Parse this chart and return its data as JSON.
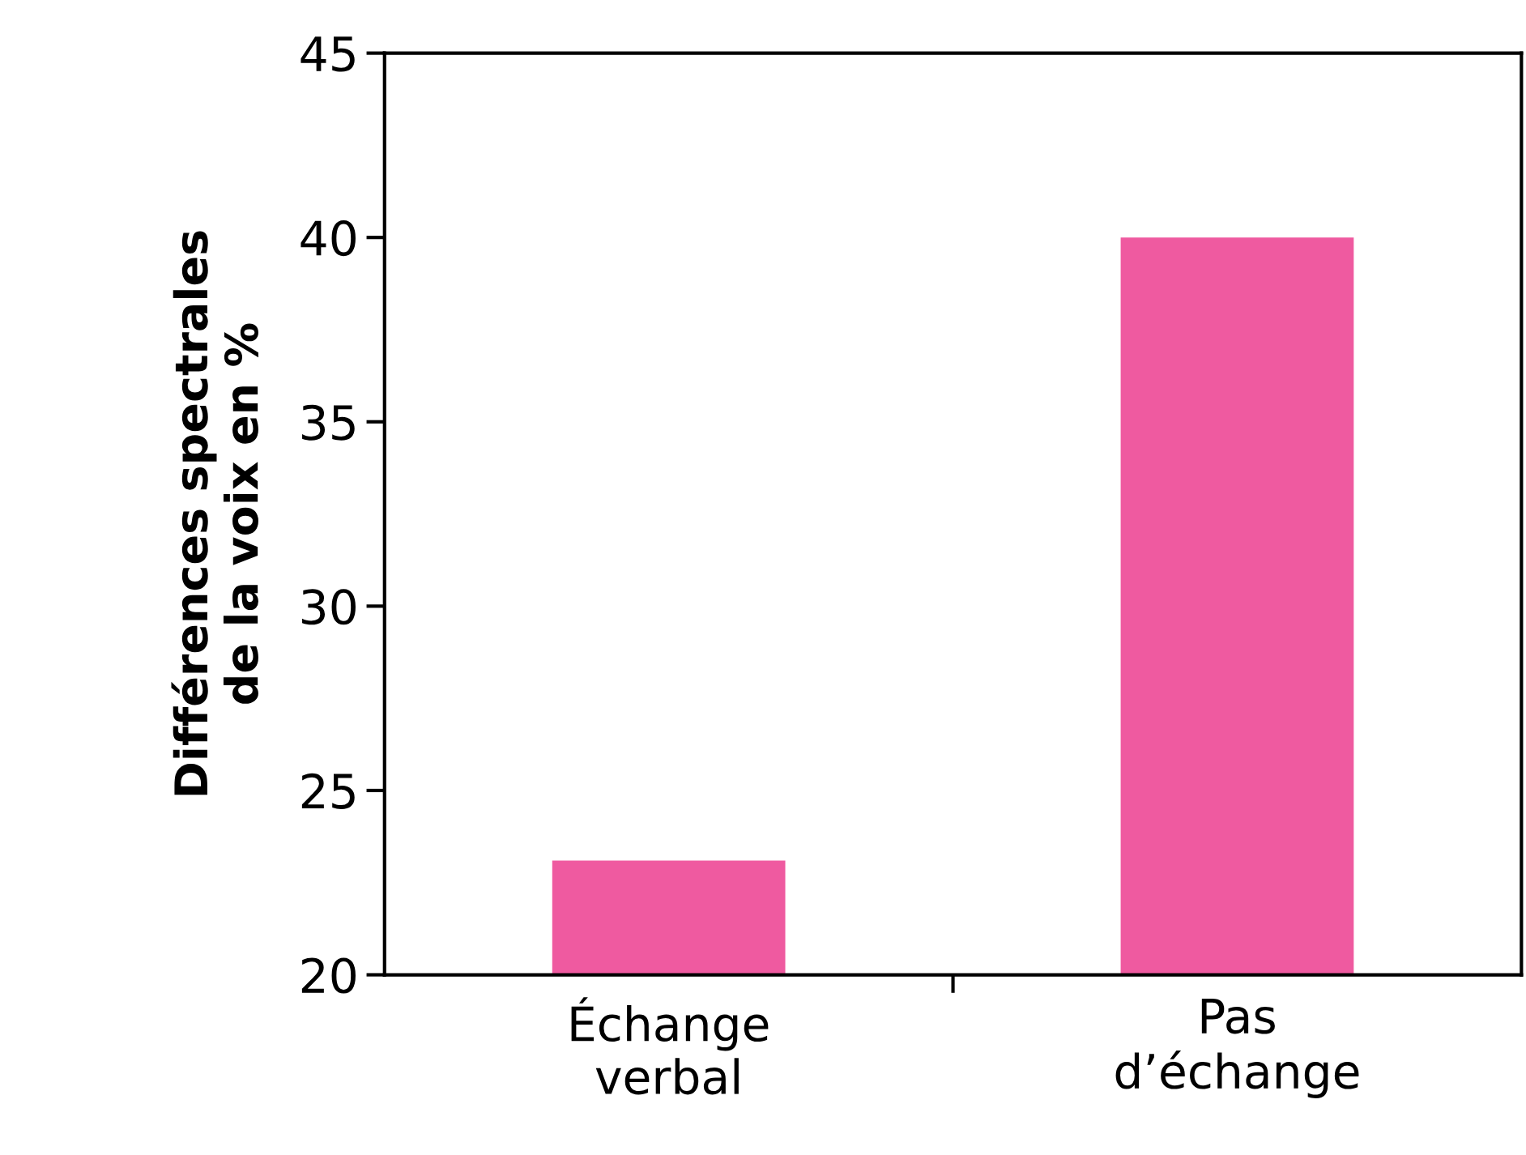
{
  "chart_data": {
    "type": "bar",
    "ylabel": "Différences spectrales\nde la voix en %",
    "categories": [
      "Échange\nverbal",
      "Pas\nd’échange"
    ],
    "values": [
      23.1,
      40
    ],
    "color": "#ef5aa0",
    "ylim": [
      20,
      45
    ],
    "yticks": [
      20,
      25,
      30,
      35,
      40,
      45
    ],
    "grid": false,
    "legend": false
  }
}
